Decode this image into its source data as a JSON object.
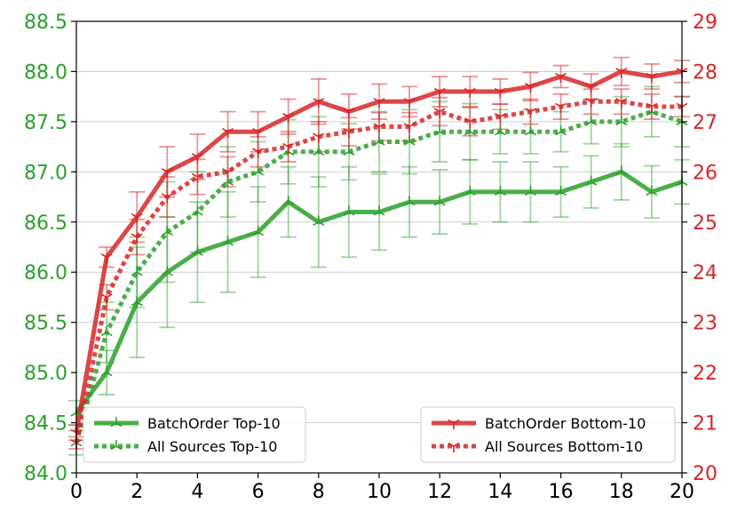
{
  "chart_data": {
    "type": "line",
    "x": [
      0,
      1,
      2,
      3,
      4,
      5,
      6,
      7,
      8,
      9,
      10,
      11,
      12,
      13,
      14,
      15,
      16,
      17,
      18,
      19,
      20
    ],
    "xlim": [
      0,
      20
    ],
    "xticks": [
      "0",
      "2",
      "4",
      "6",
      "8",
      "10",
      "12",
      "14",
      "16",
      "18",
      "20"
    ],
    "axes": {
      "left": {
        "ylim": [
          84.0,
          88.5
        ],
        "ticks": [
          "84.0",
          "84.5",
          "85.0",
          "85.5",
          "86.0",
          "86.5",
          "87.0",
          "87.5",
          "88.0",
          "88.5"
        ],
        "color": "#2ca02c"
      },
      "right": {
        "ylim": [
          20,
          29
        ],
        "ticks": [
          "20",
          "21",
          "22",
          "23",
          "24",
          "25",
          "26",
          "27",
          "28",
          "29"
        ],
        "color": "#d62728"
      }
    },
    "grid": "horizontal",
    "legend_placement": [
      "lower-left",
      "lower-right"
    ],
    "series": [
      {
        "name": "BatchOrder Top-10",
        "axis": "left",
        "color": "#2ca02c",
        "style": "solid",
        "marker": "tri-up",
        "values": [
          84.6,
          85.0,
          85.7,
          86.0,
          86.2,
          86.3,
          86.4,
          86.7,
          86.5,
          86.6,
          86.6,
          86.7,
          86.7,
          86.8,
          86.8,
          86.8,
          86.8,
          86.9,
          87.0,
          86.8,
          86.9
        ],
        "errors": [
          0.12,
          0.22,
          0.55,
          0.55,
          0.5,
          0.5,
          0.45,
          0.35,
          0.45,
          0.45,
          0.38,
          0.35,
          0.32,
          0.32,
          0.3,
          0.3,
          0.25,
          0.26,
          0.28,
          0.26,
          0.22
        ]
      },
      {
        "name": "All Sources Top-10",
        "axis": "left",
        "color": "#2ca02c",
        "style": "dotted",
        "marker": "tri-up",
        "values": [
          84.3,
          85.4,
          86.0,
          86.4,
          86.6,
          86.9,
          87.0,
          87.2,
          87.2,
          87.2,
          87.3,
          87.3,
          87.4,
          87.4,
          87.4,
          87.4,
          87.4,
          87.5,
          87.5,
          87.6,
          87.5
        ],
        "errors": [
          0.12,
          0.3,
          0.35,
          0.5,
          0.4,
          0.35,
          0.3,
          0.32,
          0.35,
          0.28,
          0.3,
          0.32,
          0.3,
          0.28,
          0.22,
          0.22,
          0.2,
          0.22,
          0.25,
          0.25,
          0.25
        ]
      },
      {
        "name": "BatchOrder Bottom-10",
        "axis": "right",
        "color": "#d62728",
        "style": "solid",
        "marker": "tri-down",
        "values": [
          20.8,
          24.3,
          25.1,
          26.0,
          26.3,
          26.8,
          26.8,
          27.1,
          27.4,
          27.2,
          27.4,
          27.4,
          27.6,
          27.6,
          27.6,
          27.7,
          27.9,
          27.7,
          28.0,
          27.9,
          28.0
        ],
        "errors": [
          0.15,
          0.2,
          0.5,
          0.5,
          0.45,
          0.4,
          0.4,
          0.35,
          0.45,
          0.35,
          0.35,
          0.3,
          0.3,
          0.3,
          0.25,
          0.28,
          0.22,
          0.25,
          0.28,
          0.25,
          0.22
        ]
      },
      {
        "name": "All Sources Bottom-10",
        "axis": "right",
        "color": "#d62728",
        "style": "dotted",
        "marker": "tri-down",
        "values": [
          20.6,
          23.5,
          24.7,
          25.5,
          25.9,
          26.0,
          26.4,
          26.5,
          26.7,
          26.8,
          26.9,
          26.9,
          27.2,
          27.0,
          27.1,
          27.2,
          27.3,
          27.4,
          27.4,
          27.3,
          27.3
        ],
        "errors": [
          0.12,
          0.25,
          0.35,
          0.4,
          0.35,
          0.3,
          0.3,
          0.3,
          0.3,
          0.28,
          0.28,
          0.28,
          0.28,
          0.28,
          0.25,
          0.25,
          0.25,
          0.25,
          0.25,
          0.25,
          0.2
        ]
      }
    ]
  }
}
